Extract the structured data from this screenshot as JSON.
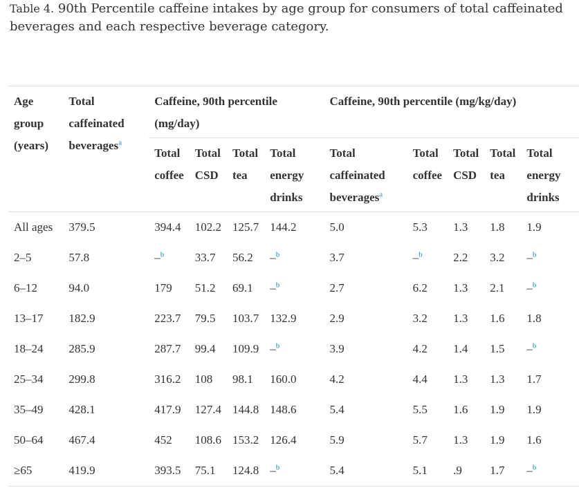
{
  "caption": {
    "label": "Table 4.",
    "text": "90th Percentile caffeine intakes by age group for consumers of total caffeinated beverages and each respective beverage category."
  },
  "header": {
    "age": "Age group (years)",
    "total": "Total caffeinated beverages",
    "total_sup": "a",
    "group_mgday": "Caffeine, 90th percentile (mg/day)",
    "group_mgkgday": "Caffeine, 90th percentile (mg/kg/day)",
    "sub": {
      "coffee": "Total coffee",
      "csd": "Total CSD",
      "tea": "Total tea",
      "energy": "Total energy drinks",
      "tcb": "Total caffeinated beverages",
      "tcb_sup": "a",
      "coffee2": "Total coffee",
      "csd2": "Total CSD",
      "tea2": "Total tea",
      "energy2": "Total energy drinks"
    }
  },
  "dash": "–",
  "footnote_b": "b",
  "rows": [
    {
      "age": "All ages",
      "total": "379.5",
      "coffee": "394.4",
      "csd": "102.2",
      "tea": "125.7",
      "energy": "144.2",
      "tcb": "5.0",
      "coffee2": "5.3",
      "csd2": "1.3",
      "tea2": "1.8",
      "energy2": "1.9"
    },
    {
      "age": "2–5",
      "total": "57.8",
      "coffee": null,
      "csd": "33.7",
      "tea": "56.2",
      "energy": null,
      "tcb": "3.7",
      "coffee2": null,
      "csd2": "2.2",
      "tea2": "3.2",
      "energy2": null
    },
    {
      "age": "6–12",
      "total": "94.0",
      "coffee": "179",
      "csd": "51.2",
      "tea": "69.1",
      "energy": null,
      "tcb": "2.7",
      "coffee2": "6.2",
      "csd2": "1.3",
      "tea2": "2.1",
      "energy2": null
    },
    {
      "age": "13–17",
      "total": "182.9",
      "coffee": "223.7",
      "csd": "79.5",
      "tea": "103.7",
      "energy": "132.9",
      "tcb": "2.9",
      "coffee2": "3.2",
      "csd2": "1.3",
      "tea2": "1.6",
      "energy2": "1.8"
    },
    {
      "age": "18–24",
      "total": "285.9",
      "coffee": "287.7",
      "csd": "99.4",
      "tea": "109.9",
      "energy": null,
      "tcb": "3.9",
      "coffee2": "4.2",
      "csd2": "1.4",
      "tea2": "1.5",
      "energy2": null
    },
    {
      "age": "25–34",
      "total": "299.8",
      "coffee": "316.2",
      "csd": "108",
      "tea": "98.1",
      "energy": "160.0",
      "tcb": "4.2",
      "coffee2": "4.4",
      "csd2": "1.3",
      "tea2": "1.3",
      "energy2": "1.7"
    },
    {
      "age": "35–49",
      "total": "428.1",
      "coffee": "417.9",
      "csd": "127.4",
      "tea": "144.8",
      "energy": "148.6",
      "tcb": "5.4",
      "coffee2": "5.5",
      "csd2": "1.6",
      "tea2": "1.9",
      "energy2": "1.9"
    },
    {
      "age": "50–64",
      "total": "467.4",
      "coffee": "452",
      "csd": "108.6",
      "tea": "153.2",
      "energy": "126.4",
      "tcb": "5.9",
      "coffee2": "5.7",
      "csd2": "1.3",
      "tea2": "1.9",
      "energy2": "1.6"
    },
    {
      "age": "≥65",
      "total": "419.9",
      "coffee": "393.5",
      "csd": "75.1",
      "tea": "124.8",
      "energy": null,
      "tcb": "5.4",
      "coffee2": "5.1",
      "csd2": ".9",
      "tea2": "1.7",
      "energy2": null
    }
  ]
}
